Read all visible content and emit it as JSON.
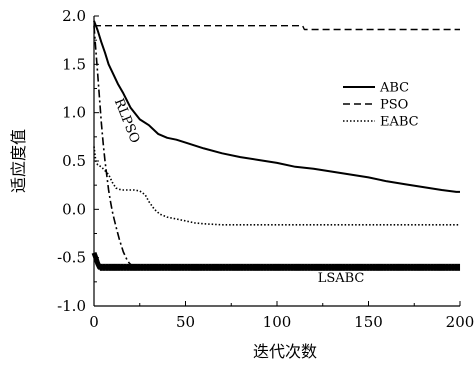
{
  "chart_data": {
    "type": "line",
    "xlabel": "迭代次数",
    "ylabel": "适应度值",
    "xlim": [
      0,
      200
    ],
    "ylim": [
      -1.0,
      2.0
    ],
    "x_ticks": [
      "0",
      "50",
      "100",
      "150",
      "200"
    ],
    "y_ticks": [
      "-1.0",
      "-0.5",
      "0.0",
      "0.5",
      "1.0",
      "1.5",
      "2.0"
    ],
    "grid": false,
    "legend": {
      "position": "right",
      "entries": [
        "ABC",
        "PSO",
        "EABC"
      ]
    },
    "series": [
      {
        "name": "ABC",
        "style": "solid",
        "x": [
          0,
          2,
          4,
          6,
          8,
          10,
          13,
          16,
          20,
          25,
          30,
          35,
          40,
          45,
          50,
          60,
          70,
          80,
          90,
          100,
          110,
          120,
          130,
          140,
          150,
          160,
          170,
          180,
          190,
          198,
          200
        ],
        "y": [
          1.95,
          1.85,
          1.73,
          1.62,
          1.5,
          1.42,
          1.3,
          1.2,
          1.05,
          0.93,
          0.87,
          0.78,
          0.74,
          0.72,
          0.69,
          0.63,
          0.58,
          0.54,
          0.51,
          0.48,
          0.44,
          0.42,
          0.39,
          0.36,
          0.33,
          0.29,
          0.26,
          0.23,
          0.2,
          0.18,
          0.18
        ]
      },
      {
        "name": "PSO",
        "style": "dashed",
        "x": [
          0,
          114,
          115,
          200
        ],
        "y": [
          1.9,
          1.9,
          1.86,
          1.86
        ]
      },
      {
        "name": "EABC",
        "style": "dotted",
        "x": [
          0,
          1,
          2,
          4,
          6,
          8,
          10,
          12,
          15,
          18,
          20,
          22,
          25,
          28,
          30,
          33,
          36,
          40,
          45,
          50,
          55,
          60,
          70,
          80,
          100,
          120,
          150,
          200
        ],
        "y": [
          0.65,
          0.5,
          0.46,
          0.44,
          0.4,
          0.36,
          0.28,
          0.22,
          0.2,
          0.2,
          0.2,
          0.2,
          0.19,
          0.15,
          0.08,
          0.0,
          -0.05,
          -0.08,
          -0.1,
          -0.12,
          -0.14,
          -0.15,
          -0.16,
          -0.16,
          -0.16,
          -0.16,
          -0.16,
          -0.16
        ]
      },
      {
        "name": "RLPSO",
        "style": "dash-dot",
        "x": [
          0,
          1,
          2,
          3,
          4,
          5,
          6,
          7,
          8,
          9,
          10,
          11,
          12,
          13,
          14,
          15,
          16,
          17,
          18,
          19,
          20,
          22,
          24
        ],
        "y": [
          1.9,
          1.65,
          1.4,
          1.15,
          0.9,
          0.68,
          0.5,
          0.35,
          0.2,
          0.08,
          -0.02,
          -0.1,
          -0.18,
          -0.25,
          -0.32,
          -0.38,
          -0.44,
          -0.48,
          -0.52,
          -0.55,
          -0.57,
          -0.59,
          -0.6
        ]
      },
      {
        "name": "LSABC",
        "style": "thick-solid",
        "x": [
          0,
          1,
          2,
          3,
          4,
          200
        ],
        "y": [
          -0.45,
          -0.5,
          -0.56,
          -0.6,
          -0.6,
          -0.6
        ]
      }
    ],
    "annotations": [
      {
        "text": "RLPSO",
        "x": 16,
        "y": 0.9
      },
      {
        "text": "LSABC",
        "x": 135,
        "y": -0.75
      }
    ]
  }
}
